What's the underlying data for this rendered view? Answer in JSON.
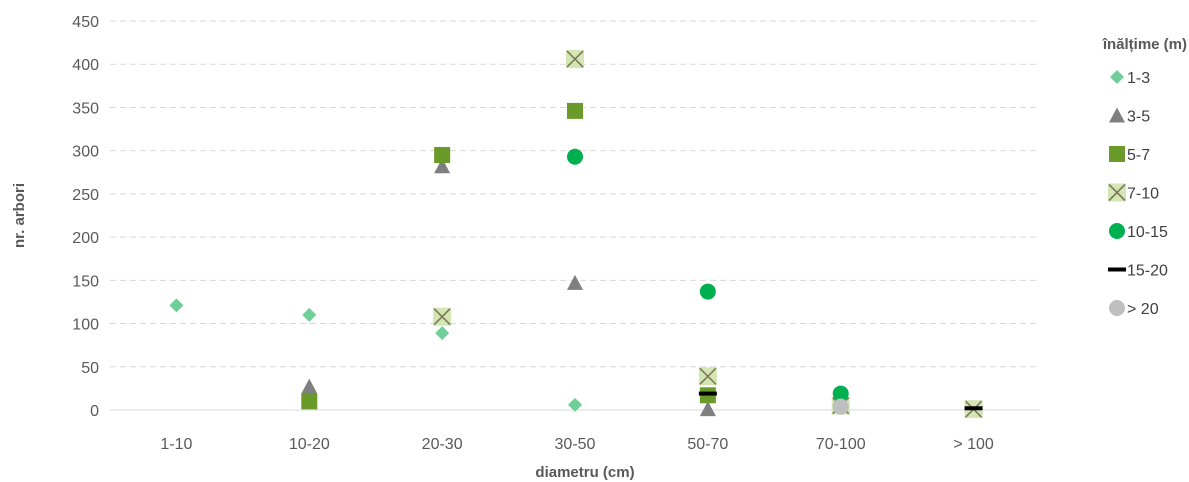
{
  "chart_data": {
    "type": "scatter",
    "xlabel": "diametru (cm)",
    "ylabel": "nr. arbori",
    "categories": [
      "1-10",
      "10-20",
      "20-30",
      "30-50",
      "50-70",
      "70-100",
      "> 100"
    ],
    "yticks": [
      "0",
      "50",
      "100",
      "150",
      "200",
      "250",
      "300",
      "350",
      "400",
      "450"
    ],
    "ylim": [
      0,
      450
    ],
    "grid": "horizontal dashed",
    "legend": {
      "title": "înălțime (m)",
      "position": "right"
    },
    "series": [
      {
        "name": "1-3",
        "marker": "diamond",
        "color": "#6fcf97",
        "values": [
          121,
          110,
          89,
          6,
          null,
          null,
          null
        ]
      },
      {
        "name": "3-5",
        "marker": "triangle",
        "color": "#7f7f7f",
        "values": [
          null,
          27,
          282,
          147,
          1,
          null,
          null
        ]
      },
      {
        "name": "5-7",
        "marker": "square",
        "color": "#6a9a2a",
        "values": [
          null,
          10,
          295,
          346,
          17,
          null,
          null
        ]
      },
      {
        "name": "7-10",
        "marker": "x-square",
        "color": "#d5e6b5",
        "values": [
          null,
          null,
          108,
          406,
          39,
          5,
          1
        ]
      },
      {
        "name": "10-15",
        "marker": "circle",
        "color": "#00b050",
        "values": [
          null,
          null,
          null,
          293,
          137,
          19,
          null
        ]
      },
      {
        "name": "15-20",
        "marker": "dash",
        "color": "#000000",
        "values": [
          null,
          null,
          null,
          null,
          19,
          null,
          2
        ]
      },
      {
        "name": "> 20",
        "marker": "circle",
        "color": "#bfbfbf",
        "values": [
          null,
          null,
          null,
          null,
          null,
          4,
          null
        ]
      }
    ]
  }
}
